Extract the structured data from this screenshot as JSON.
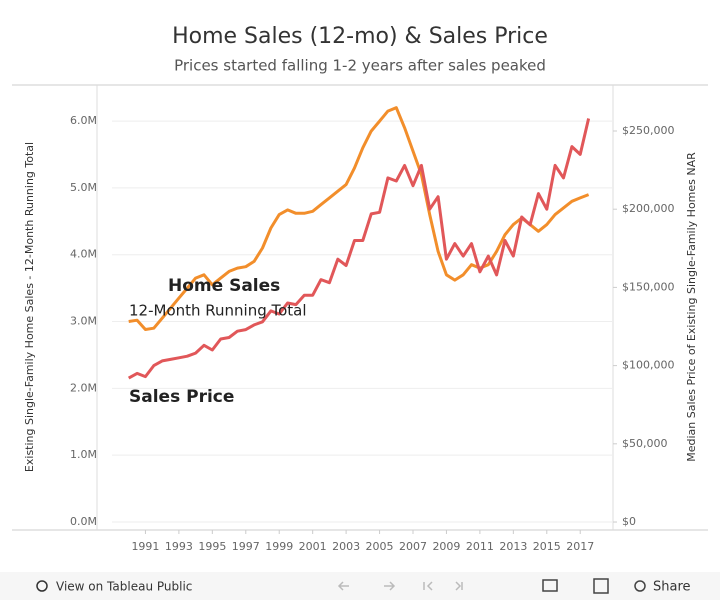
{
  "chart_data": {
    "type": "line",
    "title": "Home Sales (12-mo) & Sales Price",
    "subtitle": "Prices started falling 1-2 years after sales peaked",
    "y_label": "Existing Single-Family Home Sales - 12-Month Running Total",
    "y2_label": "Median Sales Price of Existing Single-Family Homes NAR",
    "annotations": [
      "Home Sales",
      "12-Month Running Total",
      "Sales Price"
    ],
    "x": [
      1990,
      1990.5,
      1991,
      1991.5,
      1992,
      1992.5,
      1993,
      1993.5,
      1994,
      1994.5,
      1995,
      1995.5,
      1996,
      1996.5,
      1997,
      1997.5,
      1998,
      1998.5,
      1999,
      1999.5,
      2000,
      2000.5,
      2001,
      2001.5,
      2002,
      2002.5,
      2003,
      2003.5,
      2004,
      2004.5,
      2005,
      2005.5,
      2006,
      2006.5,
      2007,
      2007.5,
      2008,
      2008.5,
      2009,
      2009.5,
      2010,
      2010.5,
      2011,
      2011.5,
      2012,
      2012.5,
      2013,
      2013.5,
      2014,
      2014.5,
      2015,
      2015.5,
      2016,
      2016.5,
      2017,
      2017.5
    ],
    "series": [
      {
        "name": "Home Sales",
        "color": "#f28e2b",
        "values": [
          3000000,
          3020000,
          2880000,
          2900000,
          3050000,
          3200000,
          3350000,
          3500000,
          3650000,
          3700000,
          3550000,
          3650000,
          3750000,
          3800000,
          3820000,
          3900000,
          4100000,
          4400000,
          4600000,
          4670000,
          4620000,
          4620000,
          4650000,
          4750000,
          4850000,
          4950000,
          5050000,
          5300000,
          5600000,
          5850000,
          6000000,
          6150000,
          6200000,
          5900000,
          5550000,
          5200000,
          4600000,
          4050000,
          3700000,
          3620000,
          3700000,
          3850000,
          3800000,
          3850000,
          4050000,
          4300000,
          4450000,
          4550000,
          4450000,
          4350000,
          4450000,
          4600000,
          4700000,
          4800000,
          4850000,
          4900000
        ]
      },
      {
        "name": "Sales Price",
        "color": "#e15759",
        "axis": "y2",
        "values": [
          92000,
          95000,
          93000,
          100000,
          103000,
          104000,
          105000,
          106000,
          108000,
          113000,
          110000,
          117000,
          118000,
          122000,
          123000,
          126000,
          128000,
          135000,
          133000,
          140000,
          139000,
          145000,
          145000,
          155000,
          153000,
          168000,
          164000,
          180000,
          180000,
          197000,
          198000,
          220000,
          218000,
          228000,
          215000,
          228000,
          200000,
          208000,
          168000,
          178000,
          170000,
          178000,
          160000,
          170000,
          158000,
          180000,
          170000,
          195000,
          190000,
          210000,
          200000,
          228000,
          220000,
          240000,
          235000,
          258000
        ]
      }
    ],
    "xlim": [
      1989,
      2018.9
    ],
    "xticks": [
      1991,
      1993,
      1995,
      1997,
      1999,
      2001,
      2003,
      2005,
      2007,
      2009,
      2011,
      2013,
      2015,
      2017
    ],
    "ylim": [
      -120000,
      6540000
    ],
    "yticks": [
      {
        "value": 0,
        "label": "0.0M"
      },
      {
        "value": 1000000,
        "label": "1.0M"
      },
      {
        "value": 2000000,
        "label": "2.0M"
      },
      {
        "value": 3000000,
        "label": "3.0M"
      },
      {
        "value": 4000000,
        "label": "4.0M"
      },
      {
        "value": 5000000,
        "label": "5.0M"
      },
      {
        "value": 6000000,
        "label": "6.0M"
      }
    ],
    "y2lim": [
      -5100,
      279400
    ],
    "y2ticks": [
      {
        "value": 0,
        "label": "$0"
      },
      {
        "value": 50000,
        "label": "$50,000"
      },
      {
        "value": 100000,
        "label": "$100,000"
      },
      {
        "value": 150000,
        "label": "$150,000"
      },
      {
        "value": 200000,
        "label": "$200,000"
      },
      {
        "value": 250000,
        "label": "$250,000"
      }
    ],
    "grid": true
  },
  "toolbar": {
    "view": "View on Tableau Public",
    "share": "Share"
  }
}
